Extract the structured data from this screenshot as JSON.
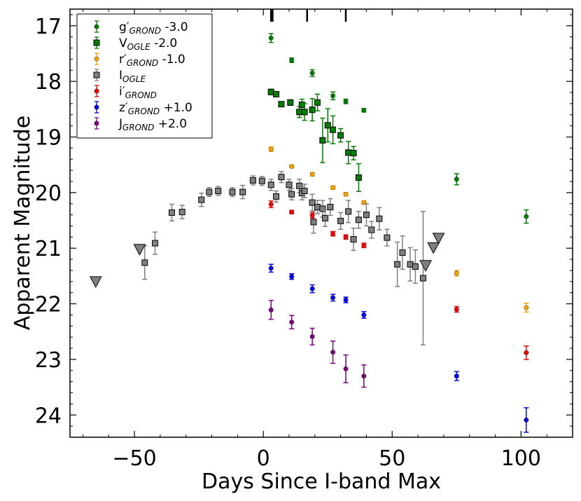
{
  "chart_data": {
    "type": "scatter",
    "title": "",
    "xlabel": "Days Since I-band Max",
    "ylabel": "Apparent Magnitude",
    "xlim": [
      -75,
      120
    ],
    "ylim": [
      24.4,
      16.7
    ],
    "y_inverted": true,
    "grid": false,
    "legend_position": "upper left",
    "x_ticks": [
      -50,
      0,
      50,
      100
    ],
    "x_tick_labels": [
      "−50",
      "0",
      "50",
      "100"
    ],
    "y_ticks": [
      17,
      18,
      19,
      20,
      21,
      22,
      23,
      24
    ],
    "y_tick_labels": [
      "17",
      "18",
      "19",
      "20",
      "21",
      "22",
      "23",
      "24"
    ],
    "epoch_markers": [
      3.0,
      3.6,
      17.0,
      32.0
    ],
    "series": [
      {
        "name": "g′GROND -3.0",
        "legend_main": "g′",
        "legend_sub": "GROND",
        "legend_suffix": " -3.0",
        "color": "#008000",
        "marker": "circle",
        "points": [
          {
            "x": 3,
            "y": 17.22,
            "err": 0.08
          },
          {
            "x": 11,
            "y": 17.62,
            "err": 0.04
          },
          {
            "x": 19,
            "y": 17.85,
            "err": 0.06
          },
          {
            "x": 27,
            "y": 18.26,
            "err": 0.07
          },
          {
            "x": 32,
            "y": 18.36,
            "err": 0.04
          },
          {
            "x": 39,
            "y": 18.52,
            "err": 0.03
          },
          {
            "x": 75,
            "y": 19.76,
            "err": 0.1
          },
          {
            "x": 102,
            "y": 20.43,
            "err": 0.12
          }
        ]
      },
      {
        "name": "VOGLE -2.0",
        "legend_main": "V",
        "legend_sub": "OGLE",
        "legend_suffix": " -2.0",
        "color": "#008000",
        "marker": "square",
        "points": [
          {
            "x": 3,
            "y": 18.19,
            "err": 0.05
          },
          {
            "x": 5,
            "y": 18.23,
            "err": 0.04
          },
          {
            "x": 7,
            "y": 18.41,
            "err": 0.04
          },
          {
            "x": 10.5,
            "y": 18.38,
            "err": 0.05
          },
          {
            "x": 14,
            "y": 18.55,
            "err": 0.1
          },
          {
            "x": 15,
            "y": 18.42,
            "err": 0.1
          },
          {
            "x": 16,
            "y": 18.55,
            "err": 0.15
          },
          {
            "x": 19,
            "y": 18.51,
            "err": 0.2
          },
          {
            "x": 21,
            "y": 18.38,
            "err": 0.15
          },
          {
            "x": 23,
            "y": 19.06,
            "err": 0.4
          },
          {
            "x": 25,
            "y": 18.79,
            "err": 0.3
          },
          {
            "x": 27,
            "y": 18.87,
            "err": 0.25
          },
          {
            "x": 30,
            "y": 18.97,
            "err": 0.12
          },
          {
            "x": 33,
            "y": 19.28,
            "err": 0.2
          },
          {
            "x": 35,
            "y": 19.29,
            "err": 0.12
          },
          {
            "x": 37,
            "y": 19.73,
            "err": 0.25
          }
        ]
      },
      {
        "name": "r′GROND -1.0",
        "legend_main": "r′",
        "legend_sub": "GROND",
        "legend_suffix": " -1.0",
        "color": "#ffa500",
        "marker": "circle",
        "points": [
          {
            "x": 3,
            "y": 19.22,
            "err": 0.04
          },
          {
            "x": 11,
            "y": 19.53,
            "err": 0.02
          },
          {
            "x": 19,
            "y": 19.67,
            "err": 0.03
          },
          {
            "x": 27,
            "y": 19.91,
            "err": 0.03
          },
          {
            "x": 32,
            "y": 20.03,
            "err": 0.03
          },
          {
            "x": 39,
            "y": 20.18,
            "err": 0.03
          },
          {
            "x": 75,
            "y": 21.45,
            "err": 0.05
          },
          {
            "x": 102,
            "y": 22.07,
            "err": 0.08
          }
        ]
      },
      {
        "name": "IOGLE",
        "legend_main": "I",
        "legend_sub": "OGLE",
        "legend_suffix": "",
        "color": "#808080",
        "marker": "square",
        "points": [
          {
            "x": -46,
            "y": 21.26,
            "err": 0.3
          },
          {
            "x": -42,
            "y": 20.91,
            "err": 0.2
          },
          {
            "x": -35.5,
            "y": 20.36,
            "err": 0.15
          },
          {
            "x": -31.5,
            "y": 20.35,
            "err": 0.12
          },
          {
            "x": -24,
            "y": 20.13,
            "err": 0.12
          },
          {
            "x": -21,
            "y": 19.99,
            "err": 0.08
          },
          {
            "x": -17.5,
            "y": 19.97,
            "err": 0.08
          },
          {
            "x": -12,
            "y": 19.99,
            "err": 0.08
          },
          {
            "x": -8,
            "y": 19.99,
            "err": 0.12
          },
          {
            "x": -4,
            "y": 19.78,
            "err": 0.08
          },
          {
            "x": -0.5,
            "y": 19.79,
            "err": 0.08
          },
          {
            "x": 3,
            "y": 19.86,
            "err": 0.1
          },
          {
            "x": 5,
            "y": 20.07,
            "err": 0.1
          },
          {
            "x": 7,
            "y": 19.72,
            "err": 0.1
          },
          {
            "x": 10,
            "y": 19.86,
            "err": 0.1
          },
          {
            "x": 11,
            "y": 20.03,
            "err": 0.1
          },
          {
            "x": 14,
            "y": 19.88,
            "err": 0.12
          },
          {
            "x": 15,
            "y": 20.01,
            "err": 0.12
          },
          {
            "x": 16,
            "y": 19.97,
            "err": 0.12
          },
          {
            "x": 19,
            "y": 20.18,
            "err": 0.15
          },
          {
            "x": 19.5,
            "y": 20.53,
            "err": 0.2
          },
          {
            "x": 21,
            "y": 20.26,
            "err": 0.12
          },
          {
            "x": 23,
            "y": 20.29,
            "err": 0.15
          },
          {
            "x": 24,
            "y": 20.46,
            "err": 0.15
          },
          {
            "x": 26,
            "y": 20.26,
            "err": 0.15
          },
          {
            "x": 30,
            "y": 20.51,
            "err": 0.15
          },
          {
            "x": 33,
            "y": 20.34,
            "err": 0.2
          },
          {
            "x": 35,
            "y": 20.84,
            "err": 0.2
          },
          {
            "x": 37,
            "y": 20.49,
            "err": 0.15
          },
          {
            "x": 40,
            "y": 20.4,
            "err": 0.2
          },
          {
            "x": 42,
            "y": 20.67,
            "err": 0.15
          },
          {
            "x": 45,
            "y": 20.47,
            "err": 0.2
          },
          {
            "x": 48,
            "y": 20.81,
            "err": 0.15
          },
          {
            "x": 52,
            "y": 21.29,
            "err": 0.4
          },
          {
            "x": 54,
            "y": 21.08,
            "err": 0.3
          },
          {
            "x": 57,
            "y": 21.29,
            "err": 0.3
          },
          {
            "x": 59,
            "y": 21.33,
            "err": 0.3
          },
          {
            "x": 62,
            "y": 21.54,
            "err": 1.2
          }
        ]
      },
      {
        "name": "i′GROND",
        "legend_main": "i′",
        "legend_sub": "GROND",
        "legend_suffix": "",
        "color": "#ff0000",
        "marker": "circle",
        "points": [
          {
            "x": 3,
            "y": 20.21,
            "err": 0.06
          },
          {
            "x": 11,
            "y": 20.35,
            "err": 0.03
          },
          {
            "x": 19,
            "y": 20.41,
            "err": 0.05
          },
          {
            "x": 27,
            "y": 20.74,
            "err": 0.04
          },
          {
            "x": 32,
            "y": 20.8,
            "err": 0.04
          },
          {
            "x": 39,
            "y": 20.95,
            "err": 0.04
          },
          {
            "x": 75,
            "y": 22.1,
            "err": 0.05
          },
          {
            "x": 102,
            "y": 22.88,
            "err": 0.12
          }
        ]
      },
      {
        "name": "z′GROND +1.0",
        "legend_main": "z′",
        "legend_sub": "GROND",
        "legend_suffix": " +1.0",
        "color": "#0000ff",
        "marker": "circle",
        "points": [
          {
            "x": 3,
            "y": 21.36,
            "err": 0.07
          },
          {
            "x": 11,
            "y": 21.51,
            "err": 0.05
          },
          {
            "x": 19,
            "y": 21.73,
            "err": 0.07
          },
          {
            "x": 27,
            "y": 21.89,
            "err": 0.06
          },
          {
            "x": 32,
            "y": 21.93,
            "err": 0.05
          },
          {
            "x": 39,
            "y": 22.2,
            "err": 0.06
          },
          {
            "x": 75,
            "y": 23.3,
            "err": 0.08
          },
          {
            "x": 102,
            "y": 24.09,
            "err": 0.22
          }
        ]
      },
      {
        "name": "JGROND +2.0",
        "legend_main": "J",
        "legend_sub": "GROND",
        "legend_suffix": " +2.0",
        "color": "#800080",
        "marker": "circle",
        "points": [
          {
            "x": 3,
            "y": 22.11,
            "err": 0.17
          },
          {
            "x": 11,
            "y": 22.33,
            "err": 0.12
          },
          {
            "x": 19,
            "y": 22.59,
            "err": 0.15
          },
          {
            "x": 27,
            "y": 22.87,
            "err": 0.2
          },
          {
            "x": 32,
            "y": 23.17,
            "err": 0.25
          },
          {
            "x": 39,
            "y": 23.3,
            "err": 0.2
          }
        ]
      }
    ],
    "upper_limits": {
      "color": "#808080",
      "marker": "triangle-down",
      "points": [
        {
          "x": -65,
          "y": 21.6
        },
        {
          "x": -48,
          "y": 21.02
        },
        {
          "x": 63,
          "y": 21.31
        },
        {
          "x": 66,
          "y": 20.99
        },
        {
          "x": 68,
          "y": 20.82
        }
      ]
    }
  }
}
